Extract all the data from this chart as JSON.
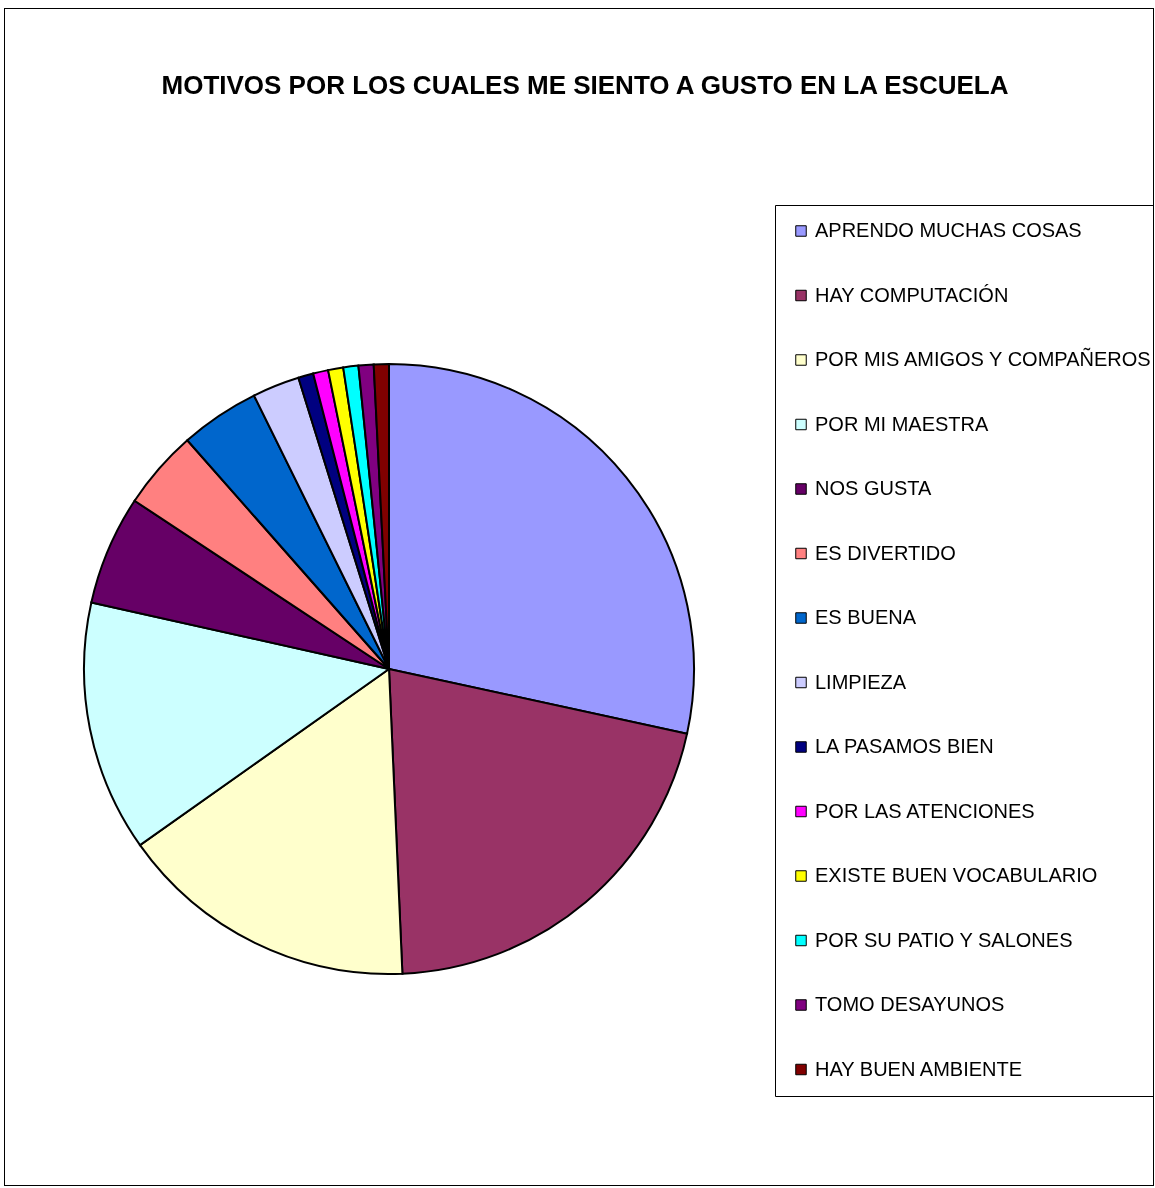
{
  "chart_data": {
    "type": "pie",
    "title": "MOTIVOS POR LOS CUALES ME SIENTO A GUSTO EN LA ESCUELA",
    "categories": [
      "APRENDO MUCHAS COSAS",
      "HAY COMPUTACIÓN",
      "POR MIS AMIGOS Y COMPAÑEROS",
      "POR MI MAESTRA",
      "NOS GUSTA",
      "ES DIVERTIDO",
      "ES BUENA",
      "LIMPIEZA",
      "LA PASAMOS BIEN",
      "POR LAS ATENCIONES",
      "EXISTE BUEN VOCABULARIO",
      "POR SU PATIO Y SALONES",
      "TOMO DESAYUNOS",
      "HAY BUEN AMBIENTE"
    ],
    "values": [
      28.4,
      20.9,
      15.9,
      13.3,
      5.8,
      4.2,
      4.2,
      2.5,
      0.8,
      0.8,
      0.8,
      0.8,
      0.8,
      0.8
    ],
    "colors": [
      "#9999ff",
      "#993366",
      "#ffffcc",
      "#ccffff",
      "#660066",
      "#ff8080",
      "#0066cc",
      "#ccccff",
      "#000080",
      "#ff00ff",
      "#ffff00",
      "#00ffff",
      "#800080",
      "#800000"
    ],
    "legend": "right"
  }
}
